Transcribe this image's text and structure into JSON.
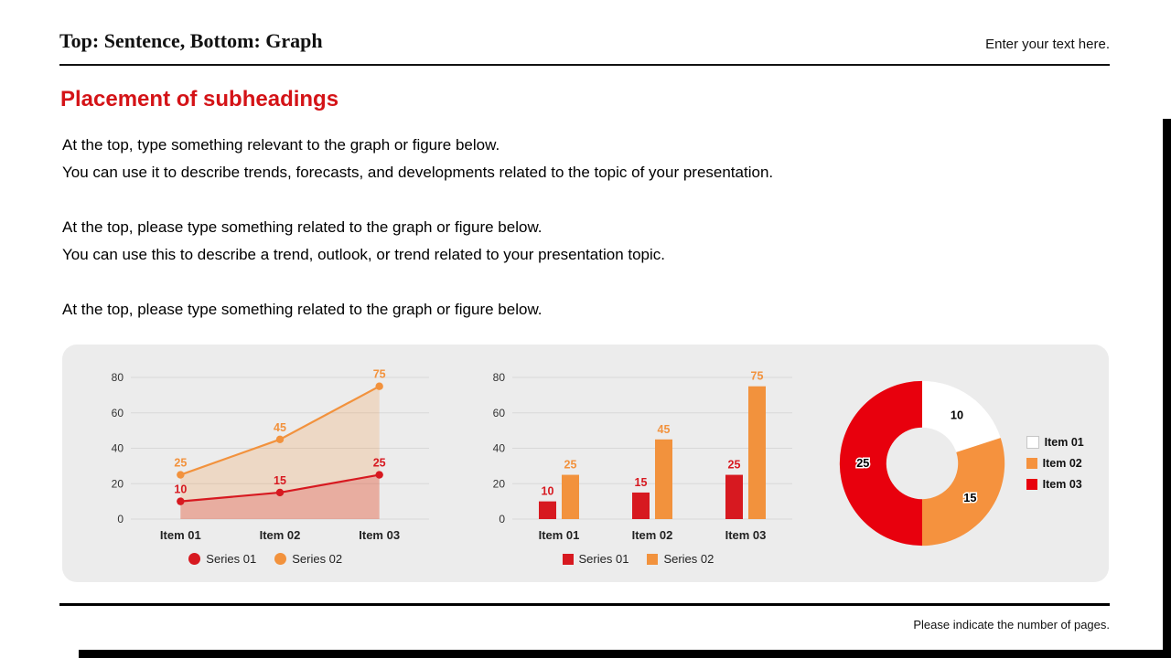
{
  "header": {
    "title": "Top: Sentence, Bottom: Graph",
    "placeholder": "Enter your text here."
  },
  "subheading": "Placement of subheadings",
  "paragraphs": [
    {
      "lines": [
        "At the top, type something relevant to the graph or figure below.",
        "You can use it to describe trends, forecasts, and developments related to the topic of your presentation."
      ]
    },
    {
      "lines": [
        "At the top, please type something related to the graph or figure below.",
        "You can use this to describe a trend, outlook, or trend related to your presentation topic."
      ]
    },
    {
      "lines": [
        "At the top, please type something related to the graph or figure below."
      ]
    }
  ],
  "footer": {
    "note": "Please indicate the number of pages."
  },
  "colors": {
    "red": "#d71920",
    "orange": "#f2923d",
    "donut_red": "#e8000d",
    "panel": "#ececec",
    "heading_red": "#d41317"
  },
  "chart_data": [
    {
      "type": "area",
      "title": "",
      "categories": [
        "Item 01",
        "Item 02",
        "Item 03"
      ],
      "series": [
        {
          "name": "Series 01",
          "color": "red",
          "values": [
            10,
            15,
            25
          ]
        },
        {
          "name": "Series 02",
          "color": "orange",
          "values": [
            25,
            45,
            75
          ]
        }
      ],
      "ylim": [
        0,
        80
      ],
      "yticks": [
        0,
        20,
        40,
        60,
        80
      ],
      "grid": true,
      "legend_position": "bottom"
    },
    {
      "type": "bar",
      "title": "",
      "categories": [
        "Item 01",
        "Item 02",
        "Item 03"
      ],
      "series": [
        {
          "name": "Series 01",
          "color": "red",
          "values": [
            10,
            15,
            25
          ]
        },
        {
          "name": "Series 02",
          "color": "orange",
          "values": [
            25,
            45,
            75
          ]
        }
      ],
      "ylim": [
        0,
        80
      ],
      "yticks": [
        0,
        20,
        40,
        60,
        80
      ],
      "grid": true,
      "legend_position": "bottom"
    },
    {
      "type": "pie",
      "subtype": "donut",
      "title": "",
      "labels": [
        "Item 01",
        "Item 02",
        "Item 03"
      ],
      "values": [
        10,
        15,
        25
      ],
      "slice_colors": [
        "#ffffff",
        "#f5923e",
        "#e8000d"
      ],
      "legend_position": "right"
    }
  ]
}
